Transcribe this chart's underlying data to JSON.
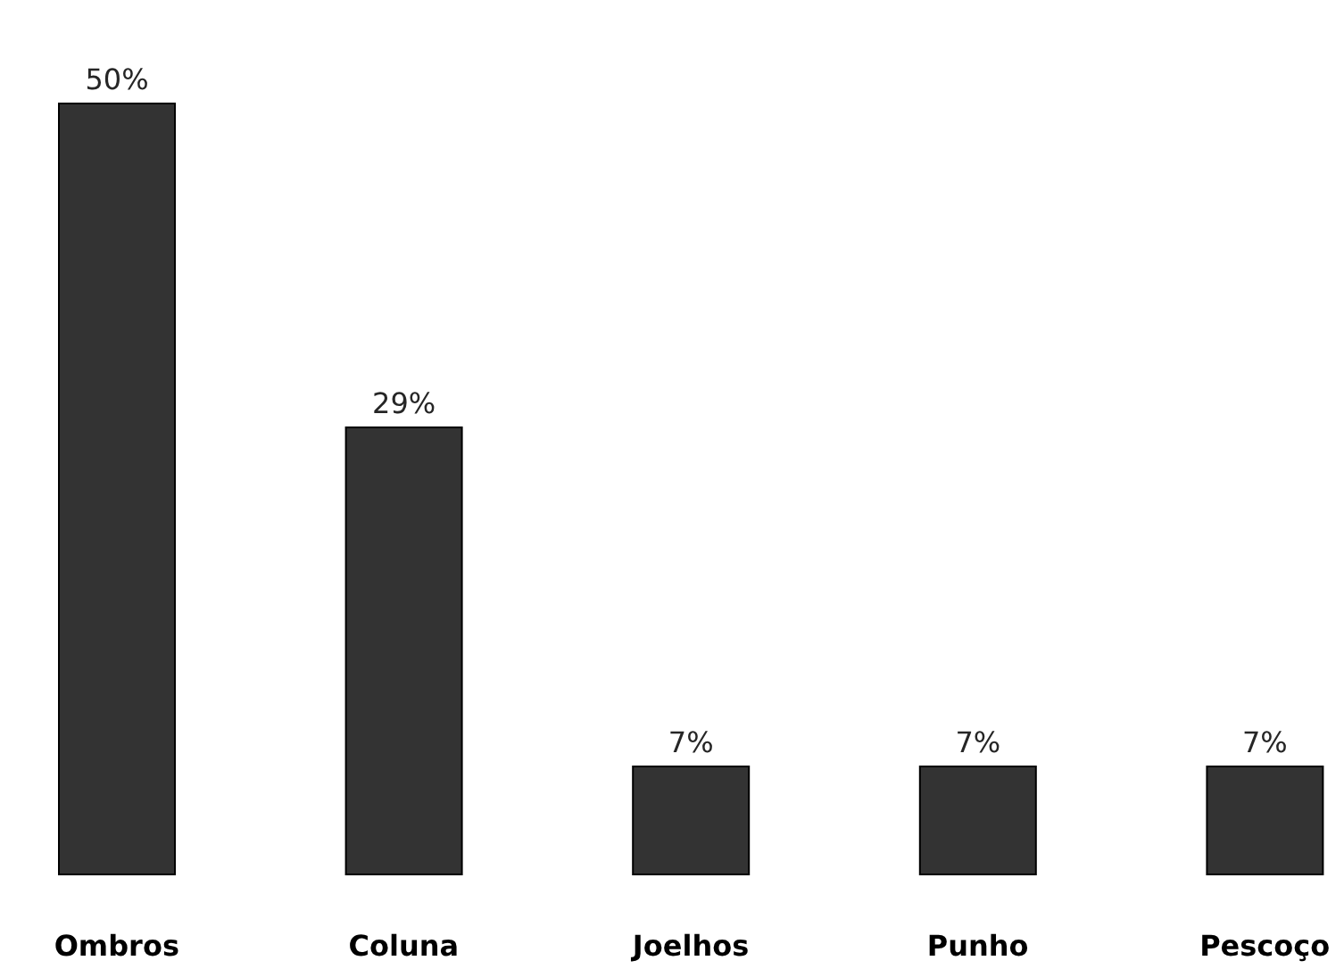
{
  "chart_data": {
    "type": "bar",
    "categories": [
      "Ombros",
      "Coluna",
      "Joelhos",
      "Punho",
      "Pescoço"
    ],
    "values": [
      50,
      29,
      7,
      7,
      7
    ],
    "value_labels": [
      "50%",
      "29%",
      "7%",
      "7%",
      "7%"
    ],
    "color": "#333333"
  }
}
